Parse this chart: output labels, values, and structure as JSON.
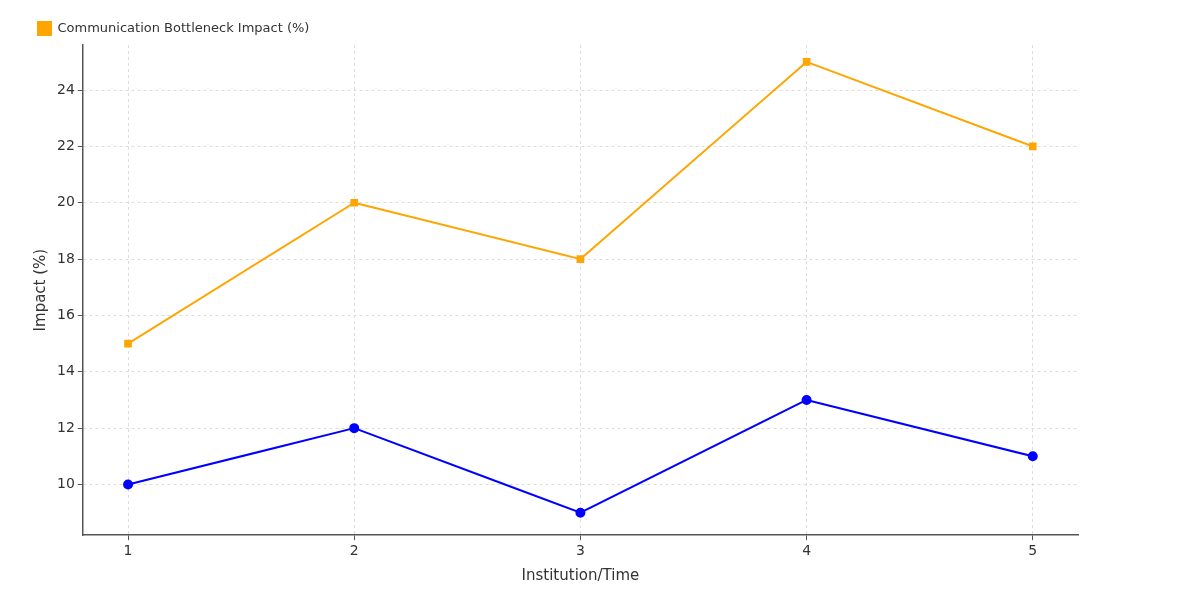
{
  "chart_data": {
    "type": "line",
    "xlabel": "Institution/Time",
    "ylabel": "Impact (%)",
    "x": [
      1,
      2,
      3,
      4,
      5
    ],
    "series": [
      {
        "name": "Communication Bottleneck Impact (%)",
        "color": "#ffa500",
        "values": [
          15,
          20,
          18,
          25,
          22
        ],
        "marker": "square"
      },
      {
        "color": "#0000ff",
        "values": [
          10,
          12,
          9,
          13,
          11
        ],
        "marker": "circle"
      }
    ],
    "xlim": [
      0.8,
      5.2
    ],
    "xticks": [
      1,
      2,
      3,
      4,
      5
    ],
    "ylim": [
      8.2,
      25.6
    ],
    "yticks": [
      10,
      12,
      14,
      16,
      18,
      20,
      22,
      24
    ],
    "grid": true,
    "legend": "top left",
    "line_style": "solid"
  }
}
